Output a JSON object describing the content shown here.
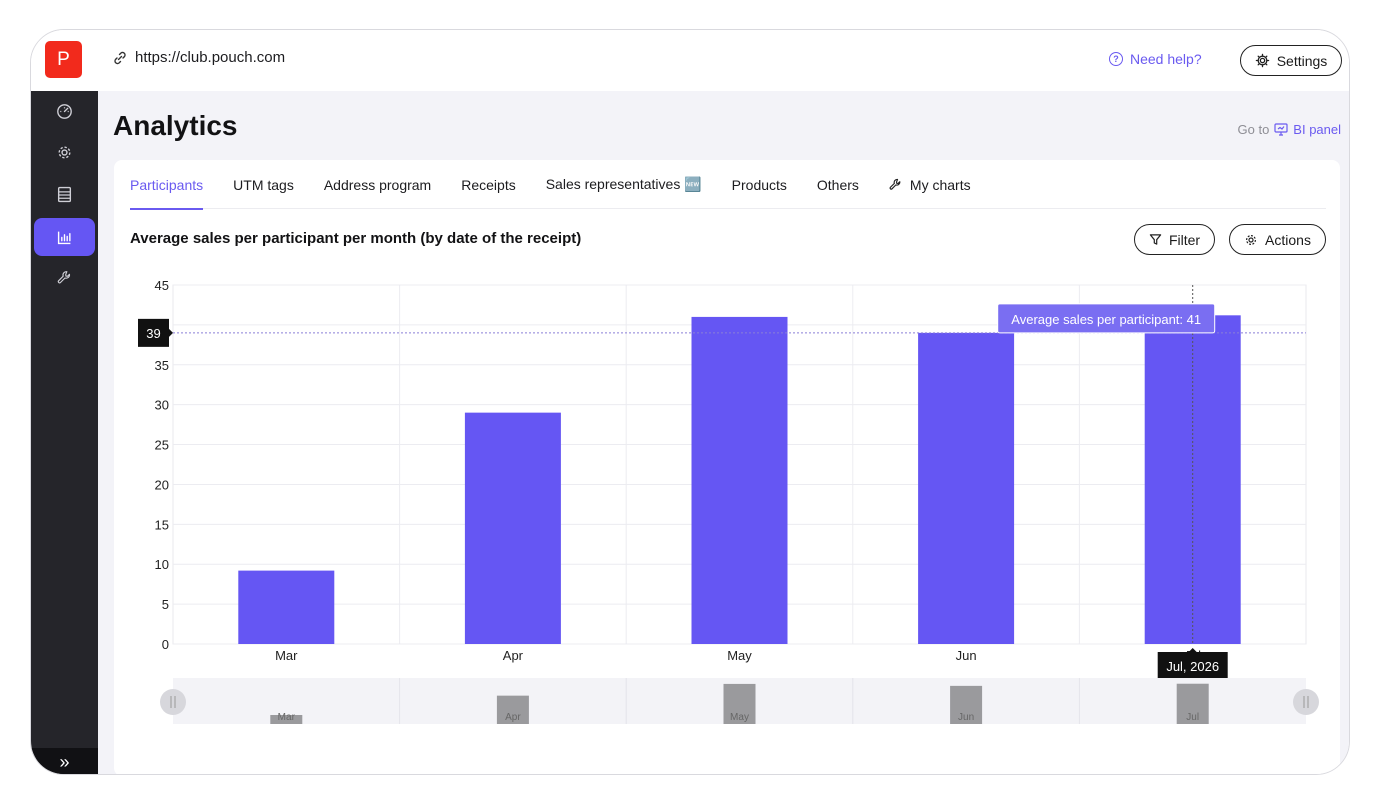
{
  "topbar": {
    "logo_letter": "P",
    "url": "https://club.pouch.com",
    "help_label": "Need help?",
    "settings_label": "Settings"
  },
  "sidebar": {
    "items": [
      {
        "icon": "dashboard-icon"
      },
      {
        "icon": "gear-icon"
      },
      {
        "icon": "list-icon"
      },
      {
        "icon": "analytics-icon",
        "active": true
      },
      {
        "icon": "wrench-icon"
      }
    ],
    "expand_label": "»"
  },
  "page": {
    "title": "Analytics",
    "goto_prefix": "Go to",
    "bi_label": "BI panel"
  },
  "tabs": [
    {
      "label": "Participants",
      "active": true
    },
    {
      "label": "UTM tags"
    },
    {
      "label": "Address program"
    },
    {
      "label": "Receipts"
    },
    {
      "label": "Sales representatives 🆕"
    },
    {
      "label": "Products"
    },
    {
      "label": "Others"
    },
    {
      "label": "My charts",
      "icon": "wrench-icon"
    }
  ],
  "chart_header": {
    "title": "Average sales per participant per month (by date of the receipt)",
    "filter_label": "Filter",
    "actions_label": "Actions"
  },
  "chart_data": {
    "type": "bar",
    "categories": [
      "Mar",
      "Apr",
      "May",
      "Jun",
      "Jul"
    ],
    "values": [
      9.2,
      29,
      41,
      39,
      41.2
    ],
    "ylim": [
      0,
      45
    ],
    "yticks": [
      0,
      5,
      10,
      15,
      20,
      25,
      30,
      35,
      40,
      45
    ],
    "ytick_labels": [
      "0",
      "5",
      "10",
      "15",
      "20",
      "25",
      "30",
      "35",
      "",
      "45"
    ],
    "bar_color": "#6556f3",
    "grid": true,
    "crosshair_y_label": "39",
    "crosshair_y_value": 39,
    "tooltip": "Average sales per participant: 41",
    "hover_x_label": "Jul, 2026",
    "hover_index": 4
  },
  "navigator": {
    "categories": [
      "Mar",
      "Apr",
      "May",
      "Jun",
      "Jul"
    ],
    "bar_color": "#9a9a9d"
  }
}
